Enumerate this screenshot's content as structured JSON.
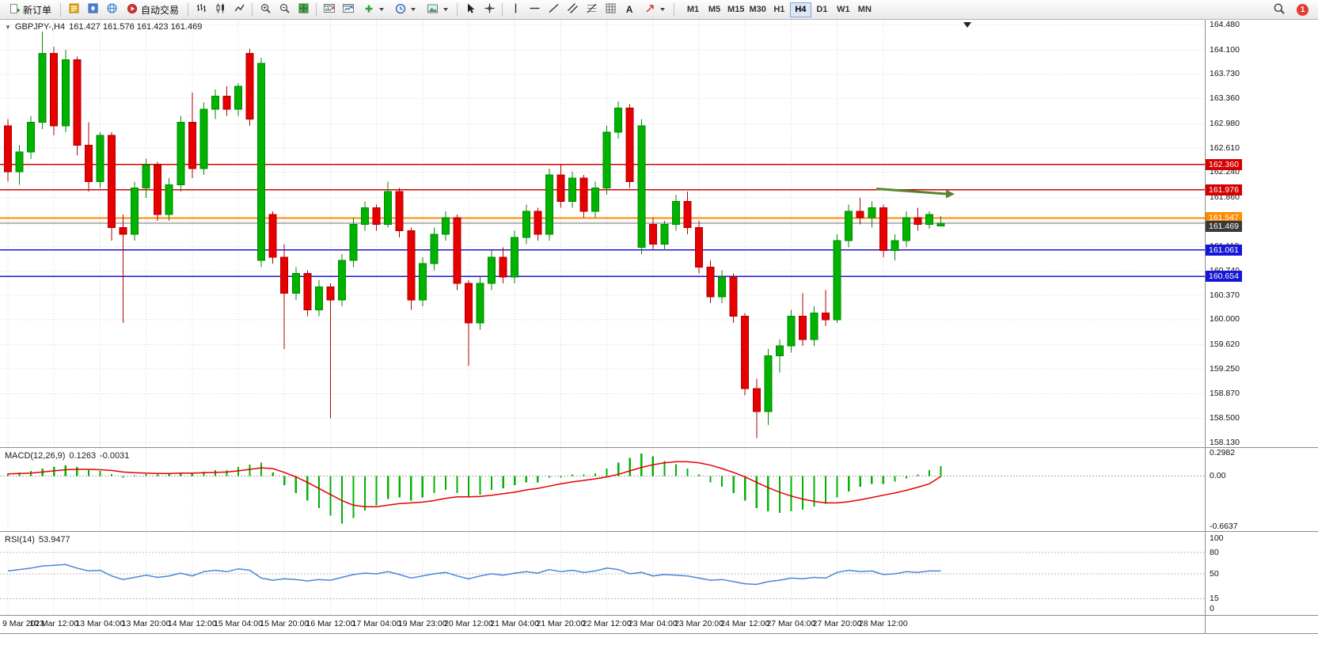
{
  "toolbar": {
    "new_order_label": "新订单",
    "autotrading_label": "自动交易",
    "text_tool_glyph": "A",
    "timeframes": [
      "M1",
      "M5",
      "M15",
      "M30",
      "H1",
      "H4",
      "D1",
      "W1",
      "MN"
    ],
    "active_timeframe": "H4",
    "notification_count": "1",
    "icon_names": [
      "new-order",
      "market-watch",
      "navigator",
      "terminal",
      "autotrading",
      "bar-chart",
      "candlestick-chart",
      "line-chart",
      "zoom-in",
      "zoom-out",
      "tile-windows",
      "arrange-windows",
      "chart-shift",
      "indicators",
      "periods",
      "templates",
      "cursor",
      "crosshair",
      "vertical-line",
      "horizontal-line",
      "trendline",
      "channel",
      "fibonacci",
      "grid",
      "text",
      "arrows",
      "search",
      "notification"
    ]
  },
  "header": {
    "symbol": "GBPJPY-,H4",
    "ohlc": "161.427 161.576 161.423 161.469"
  },
  "chart": {
    "price_axis_labels": [
      "164.480",
      "164.100",
      "163.730",
      "163.360",
      "162.980",
      "162.610",
      "162.240",
      "161.860",
      "161.490",
      "161.110",
      "160.740",
      "160.370",
      "160.000",
      "159.620",
      "159.250",
      "158.870",
      "158.500",
      "158.130"
    ],
    "h_lines": [
      {
        "price": 162.36,
        "label": "162.360",
        "color": "#d40000",
        "width": 1.2
      },
      {
        "price": 161.976,
        "label": "161.976",
        "color": "#d40000",
        "width": 1.2
      },
      {
        "price": 161.547,
        "label": "161.547",
        "color": "#ff8a00",
        "width": 2
      },
      {
        "price": 161.061,
        "label": "161.061",
        "color": "#1616d6",
        "width": 1.5
      },
      {
        "price": 160.654,
        "label": "160.654",
        "color": "#1616d6",
        "width": 1.5
      }
    ],
    "current_price": {
      "price": 161.469,
      "label": "161.469",
      "line_color": "#707070",
      "box_color": "#3a3a3a"
    },
    "annotation": {
      "type": "arrow",
      "price_start": 161.99,
      "price_end": 161.91,
      "index_start": 75.4,
      "index_end": 82.2,
      "color": "#57862c"
    },
    "shift_marker_index": 83.3
  },
  "chart_data": {
    "type": "candlestick",
    "symbol": "GBPJPY-",
    "timeframe": "H4",
    "candles": [
      [
        162.95,
        163.05,
        162.1,
        162.25
      ],
      [
        162.25,
        162.65,
        162.05,
        162.55
      ],
      [
        162.55,
        163.1,
        162.45,
        163.0
      ],
      [
        163.0,
        164.38,
        162.9,
        164.05
      ],
      [
        164.05,
        164.15,
        162.8,
        162.95
      ],
      [
        162.95,
        164.1,
        162.85,
        163.95
      ],
      [
        163.95,
        164.0,
        162.5,
        162.65
      ],
      [
        162.65,
        163.0,
        161.95,
        162.1
      ],
      [
        162.1,
        162.85,
        162.0,
        162.8
      ],
      [
        162.8,
        162.85,
        161.2,
        161.4
      ],
      [
        161.4,
        161.6,
        159.95,
        161.3
      ],
      [
        161.3,
        162.1,
        161.2,
        162.0
      ],
      [
        162.0,
        162.45,
        161.85,
        162.35
      ],
      [
        162.35,
        162.4,
        161.5,
        161.6
      ],
      [
        161.6,
        162.15,
        161.5,
        162.05
      ],
      [
        162.05,
        163.1,
        161.95,
        163.0
      ],
      [
        163.0,
        163.45,
        162.15,
        162.3
      ],
      [
        162.3,
        163.3,
        162.2,
        163.2
      ],
      [
        163.2,
        163.5,
        163.05,
        163.4
      ],
      [
        163.4,
        163.55,
        163.1,
        163.2
      ],
      [
        163.2,
        163.6,
        163.1,
        163.55
      ],
      [
        164.05,
        164.12,
        162.95,
        163.05
      ],
      [
        160.9,
        163.98,
        160.8,
        163.9
      ],
      [
        161.6,
        161.65,
        160.85,
        160.95
      ],
      [
        160.95,
        161.15,
        159.55,
        160.4
      ],
      [
        160.4,
        160.8,
        160.3,
        160.7
      ],
      [
        160.7,
        160.75,
        160.05,
        160.15
      ],
      [
        160.15,
        160.6,
        160.05,
        160.5
      ],
      [
        160.5,
        160.55,
        158.5,
        160.3
      ],
      [
        160.3,
        161.0,
        160.2,
        160.9
      ],
      [
        160.9,
        161.55,
        160.8,
        161.45
      ],
      [
        161.45,
        161.8,
        161.35,
        161.7
      ],
      [
        161.7,
        161.75,
        161.35,
        161.45
      ],
      [
        161.45,
        162.1,
        161.4,
        161.95
      ],
      [
        161.95,
        162.0,
        161.25,
        161.35
      ],
      [
        161.35,
        161.4,
        160.15,
        160.3
      ],
      [
        160.3,
        160.95,
        160.2,
        160.85
      ],
      [
        160.85,
        161.4,
        160.75,
        161.3
      ],
      [
        161.3,
        161.65,
        161.2,
        161.55
      ],
      [
        161.55,
        161.6,
        160.45,
        160.55
      ],
      [
        160.55,
        160.6,
        159.3,
        159.95
      ],
      [
        159.95,
        160.65,
        159.85,
        160.55
      ],
      [
        160.55,
        161.05,
        160.45,
        160.95
      ],
      [
        160.95,
        161.1,
        160.55,
        160.65
      ],
      [
        160.65,
        161.35,
        160.55,
        161.25
      ],
      [
        161.25,
        161.75,
        161.15,
        161.65
      ],
      [
        161.65,
        161.7,
        161.2,
        161.3
      ],
      [
        161.3,
        162.3,
        161.2,
        162.2
      ],
      [
        162.2,
        162.35,
        161.7,
        161.8
      ],
      [
        161.8,
        162.25,
        161.7,
        162.15
      ],
      [
        162.15,
        162.2,
        161.55,
        161.65
      ],
      [
        161.65,
        162.1,
        161.55,
        162.0
      ],
      [
        162.0,
        162.95,
        161.9,
        162.85
      ],
      [
        162.85,
        163.32,
        162.75,
        163.22
      ],
      [
        163.22,
        163.28,
        162.0,
        162.1
      ],
      [
        161.1,
        163.05,
        161.0,
        162.95
      ],
      [
        161.45,
        161.55,
        161.05,
        161.15
      ],
      [
        161.15,
        161.5,
        161.05,
        161.45
      ],
      [
        161.45,
        161.9,
        161.35,
        161.8
      ],
      [
        161.8,
        161.95,
        161.3,
        161.4
      ],
      [
        161.4,
        161.5,
        160.7,
        160.8
      ],
      [
        160.8,
        160.9,
        160.25,
        160.35
      ],
      [
        160.35,
        160.75,
        160.25,
        160.65
      ],
      [
        160.65,
        160.7,
        159.95,
        160.05
      ],
      [
        160.05,
        160.1,
        158.85,
        158.95
      ],
      [
        158.95,
        159.1,
        158.2,
        158.6
      ],
      [
        158.6,
        159.55,
        158.4,
        159.45
      ],
      [
        159.45,
        159.7,
        159.2,
        159.6
      ],
      [
        159.6,
        160.15,
        159.5,
        160.05
      ],
      [
        160.05,
        160.4,
        159.6,
        159.7
      ],
      [
        159.7,
        160.2,
        159.6,
        160.1
      ],
      [
        160.1,
        160.45,
        159.9,
        160.0
      ],
      [
        160.0,
        161.3,
        159.95,
        161.2
      ],
      [
        161.2,
        161.75,
        161.1,
        161.65
      ],
      [
        161.65,
        161.85,
        161.45,
        161.55
      ],
      [
        161.55,
        161.8,
        161.4,
        161.7
      ],
      [
        161.7,
        161.75,
        160.95,
        161.05
      ],
      [
        161.05,
        161.3,
        160.9,
        161.2
      ],
      [
        161.2,
        161.65,
        161.1,
        161.55
      ],
      [
        161.55,
        161.7,
        161.35,
        161.45
      ],
      [
        161.45,
        161.65,
        161.38,
        161.6
      ],
      [
        161.427,
        161.576,
        161.423,
        161.469
      ]
    ],
    "time_labels": [
      {
        "i": 0,
        "t": "9 Mar 2023"
      },
      {
        "i": 4,
        "t": "10 Mar 12:00"
      },
      {
        "i": 8,
        "t": "13 Mar 04:00"
      },
      {
        "i": 12,
        "t": "13 Mar 20:00"
      },
      {
        "i": 16,
        "t": "14 Mar 12:00"
      },
      {
        "i": 20,
        "t": "15 Mar 04:00"
      },
      {
        "i": 24,
        "t": "15 Mar 20:00"
      },
      {
        "i": 28,
        "t": "16 Mar 12:00"
      },
      {
        "i": 32,
        "t": "17 Mar 04:00"
      },
      {
        "i": 36,
        "t": "19 Mar 23:00"
      },
      {
        "i": 40,
        "t": "20 Mar 12:00"
      },
      {
        "i": 44,
        "t": "21 Mar 04:00"
      },
      {
        "i": 48,
        "t": "21 Mar 20:00"
      },
      {
        "i": 52,
        "t": "22 Mar 12:00"
      },
      {
        "i": 56,
        "t": "23 Mar 04:00"
      },
      {
        "i": 60,
        "t": "23 Mar 20:00"
      },
      {
        "i": 64,
        "t": "24 Mar 12:00"
      },
      {
        "i": 68,
        "t": "27 Mar 04:00"
      },
      {
        "i": 72,
        "t": "27 Mar 20:00"
      },
      {
        "i": 76,
        "t": "28 Mar 12:00"
      }
    ]
  },
  "macd": {
    "label_name": "MACD(12,26,9)",
    "value_main": "0.1263",
    "value_signal": "-0.0031",
    "scale_labels": [
      "0.2982",
      "0.00",
      "-0.6637"
    ],
    "scale_values": [
      0.2982,
      0,
      -0.6637
    ],
    "histogram": [
      0.04,
      0.05,
      0.07,
      0.1,
      0.12,
      0.14,
      0.12,
      0.08,
      0.07,
      0.03,
      -0.02,
      0.01,
      0.03,
      0.02,
      0.03,
      0.05,
      0.04,
      0.06,
      0.08,
      0.08,
      0.12,
      0.15,
      0.18,
      0.05,
      -0.12,
      -0.22,
      -0.32,
      -0.42,
      -0.52,
      -0.62,
      -0.55,
      -0.45,
      -0.38,
      -0.3,
      -0.28,
      -0.32,
      -0.28,
      -0.22,
      -0.18,
      -0.22,
      -0.28,
      -0.24,
      -0.18,
      -0.16,
      -0.12,
      -0.08,
      -0.08,
      -0.02,
      -0.02,
      0.02,
      0.02,
      0.04,
      0.1,
      0.18,
      0.24,
      0.3,
      0.26,
      0.2,
      0.16,
      0.1,
      0.02,
      -0.08,
      -0.14,
      -0.22,
      -0.32,
      -0.42,
      -0.46,
      -0.48,
      -0.46,
      -0.44,
      -0.4,
      -0.36,
      -0.28,
      -0.2,
      -0.14,
      -0.1,
      -0.1,
      -0.07,
      -0.03,
      0.02,
      0.08,
      0.13
    ],
    "signal": [
      0.03,
      0.035,
      0.04,
      0.055,
      0.07,
      0.085,
      0.09,
      0.09,
      0.085,
      0.075,
      0.055,
      0.045,
      0.04,
      0.035,
      0.035,
      0.04,
      0.04,
      0.045,
      0.05,
      0.055,
      0.07,
      0.09,
      0.11,
      0.1,
      0.05,
      -0.01,
      -0.08,
      -0.16,
      -0.24,
      -0.32,
      -0.38,
      -0.4,
      -0.4,
      -0.38,
      -0.36,
      -0.35,
      -0.34,
      -0.32,
      -0.29,
      -0.27,
      -0.27,
      -0.265,
      -0.25,
      -0.23,
      -0.21,
      -0.18,
      -0.16,
      -0.13,
      -0.1,
      -0.075,
      -0.055,
      -0.035,
      -0.01,
      0.025,
      0.07,
      0.115,
      0.15,
      0.175,
      0.19,
      0.19,
      0.175,
      0.145,
      0.1,
      0.05,
      -0.01,
      -0.08,
      -0.15,
      -0.21,
      -0.26,
      -0.3,
      -0.33,
      -0.35,
      -0.35,
      -0.335,
      -0.31,
      -0.28,
      -0.25,
      -0.22,
      -0.185,
      -0.145,
      -0.1,
      -0.003
    ]
  },
  "rsi": {
    "label_name": "RSI(14)",
    "value": "53.9477",
    "scale_labels": [
      "100",
      "80",
      "50",
      "15",
      "0"
    ],
    "levels_dashed": [
      80,
      50,
      15
    ],
    "values": [
      54,
      56,
      58,
      61,
      62,
      63,
      58,
      54,
      55,
      47,
      42,
      45,
      48,
      45,
      47,
      51,
      47,
      53,
      55,
      53,
      57,
      55,
      44,
      41,
      43,
      42,
      40,
      42,
      41,
      45,
      49,
      51,
      50,
      53,
      49,
      44,
      47,
      50,
      52,
      47,
      43,
      47,
      50,
      48,
      51,
      53,
      51,
      56,
      53,
      55,
      52,
      54,
      58,
      56,
      50,
      52,
      47,
      49,
      48,
      47,
      44,
      41,
      42,
      39,
      36,
      35,
      39,
      41,
      44,
      43,
      45,
      44,
      52,
      55,
      53,
      54,
      49,
      50,
      53,
      52,
      54,
      54
    ]
  },
  "colors": {
    "candle_up": "#00b300",
    "candle_up_border": "#008a00",
    "candle_down": "#e60000",
    "candle_down_border": "#b00000",
    "macd_histogram": "#00b300",
    "macd_signal": "#e60000",
    "rsi_line": "#4a86d8",
    "grid": "#d2d2d2",
    "current_price_line": "#707070",
    "current_price_box": "#3a3a3a",
    "arrow_green": "#57862c"
  }
}
